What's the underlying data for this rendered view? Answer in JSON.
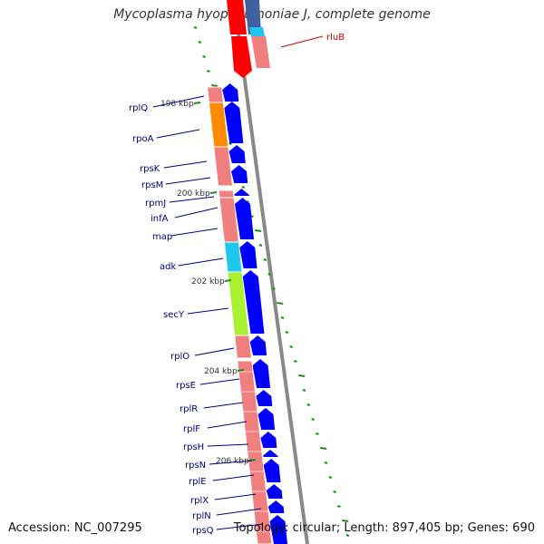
{
  "title": "Mycoplasma hyopneumoniae J, complete genome",
  "accession": "Accession: NC_007295",
  "summary": "Topology: circular; Length: 897,405 bp; Genes: 690",
  "colors": {
    "forward_cds": "#0000ff",
    "rna_red": "#ff0000",
    "pink": "#f08080",
    "orange": "#ff8c00",
    "cyan": "#1ec8f0",
    "lime": "#a8f030",
    "backbone": "#888888",
    "tick": "#228b22",
    "label_blue": "#00008b",
    "label_red": "#cc0000"
  },
  "scale_labels": [
    "198 kbp",
    "200 kbp",
    "202 kbp",
    "204 kbp",
    "206 kbp"
  ],
  "genes": [
    {
      "name": "rluB",
      "color": "label_red"
    },
    {
      "name": "rplQ",
      "color": "label_blue"
    },
    {
      "name": "rpoA",
      "color": "label_blue"
    },
    {
      "name": "rpsK",
      "color": "label_blue"
    },
    {
      "name": "rpsM",
      "color": "label_blue"
    },
    {
      "name": "rpmJ",
      "color": "label_blue"
    },
    {
      "name": "infA",
      "color": "label_blue"
    },
    {
      "name": "map",
      "color": "label_blue"
    },
    {
      "name": "adk",
      "color": "label_blue"
    },
    {
      "name": "secY",
      "color": "label_blue"
    },
    {
      "name": "rplO",
      "color": "label_blue"
    },
    {
      "name": "rpsE",
      "color": "label_blue"
    },
    {
      "name": "rplR",
      "color": "label_blue"
    },
    {
      "name": "rplF",
      "color": "label_blue"
    },
    {
      "name": "rpsH",
      "color": "label_blue"
    },
    {
      "name": "rpsN",
      "color": "label_blue"
    },
    {
      "name": "rplE",
      "color": "label_blue"
    },
    {
      "name": "rplX",
      "color": "label_blue"
    },
    {
      "name": "rplN",
      "color": "label_blue"
    },
    {
      "name": "rpsQ",
      "color": "label_blue"
    }
  ]
}
